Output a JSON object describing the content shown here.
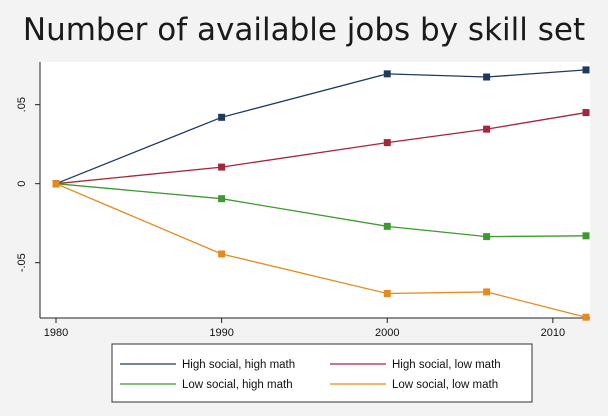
{
  "chart_data": {
    "type": "line",
    "title": "Number of available jobs by skill set",
    "xlabel": "",
    "ylabel": "",
    "xlim": [
      1980,
      2012
    ],
    "ylim": [
      -0.085,
      0.077
    ],
    "x_ticks": [
      1980,
      1990,
      2000,
      2010
    ],
    "x_tick_labels": [
      "1980",
      "1990",
      "2000",
      "2010"
    ],
    "y_ticks": [
      0.05,
      0,
      -0.05
    ],
    "y_tick_labels": [
      ".05",
      "0",
      "-.05"
    ],
    "grid": false,
    "legend_position": "bottom",
    "x": [
      1980,
      1990,
      2000,
      2006,
      2012
    ],
    "series": [
      {
        "name": "High social, high math",
        "color": "#1f3a60",
        "values": [
          0.0,
          0.042,
          0.0695,
          0.0675,
          0.072
        ]
      },
      {
        "name": "High social, low math",
        "color": "#a6263a",
        "values": [
          0.0,
          0.0105,
          0.026,
          0.0345,
          0.045
        ]
      },
      {
        "name": "Low social, high math",
        "color": "#3c9a2e",
        "values": [
          0.0,
          -0.0095,
          -0.027,
          -0.0335,
          -0.033
        ]
      },
      {
        "name": "Low social, low math",
        "color": "#e8891e",
        "values": [
          0.0,
          -0.0445,
          -0.0695,
          -0.0685,
          -0.0845
        ]
      }
    ]
  }
}
